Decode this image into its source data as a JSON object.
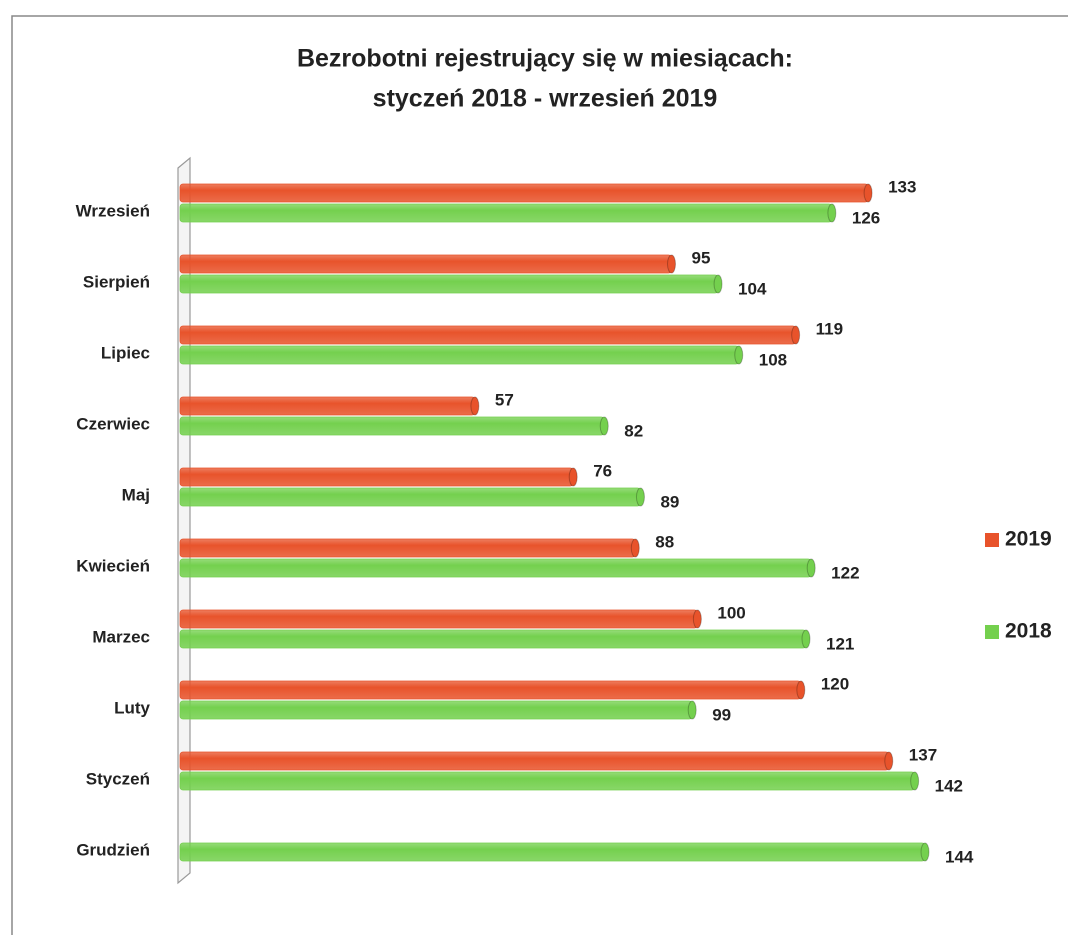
{
  "chart_data": {
    "type": "bar",
    "orientation": "horizontal",
    "title": [
      "Bezrobotni rejestrujący się w miesiącach:",
      "styczeń 2018 - wrzesień 2019"
    ],
    "categories": [
      "Wrzesień",
      "Sierpień",
      "Lipiec",
      "Czerwiec",
      "Maj",
      "Kwiecień",
      "Marzec",
      "Luty",
      "Styczeń",
      "Grudzień"
    ],
    "series": [
      {
        "name": "2019",
        "color": "#e8532b",
        "values": [
          133,
          95,
          119,
          57,
          76,
          88,
          100,
          120,
          137,
          null
        ]
      },
      {
        "name": "2018",
        "color": "#74d04e",
        "values": [
          126,
          104,
          108,
          82,
          89,
          122,
          121,
          99,
          142,
          144
        ]
      }
    ],
    "legend": "right"
  }
}
